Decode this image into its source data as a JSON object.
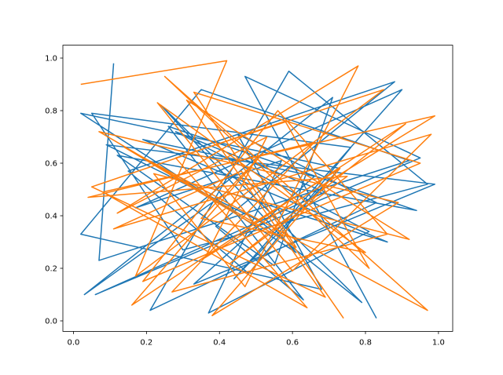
{
  "chart_data": {
    "type": "line",
    "xlim": [
      -0.029,
      1.039
    ],
    "ylim": [
      -0.04,
      1.049
    ],
    "xticks": [
      {
        "value": 0,
        "label": "0.0"
      },
      0.2,
      0.4,
      0.6,
      0.8,
      {
        "value": 1,
        "label": "1.0"
      }
    ],
    "yticks": [
      {
        "value": 0,
        "label": "0.0"
      },
      0.2,
      0.4,
      0.6,
      0.8,
      {
        "value": 1,
        "label": "1.0"
      }
    ],
    "series": [
      {
        "color": "#1f77b4",
        "x": [
          0.11,
          0.07,
          0.92,
          0.35,
          0.02,
          0.68,
          0.45,
          0.83,
          0.21,
          0.59,
          0.97,
          0.3,
          0.05,
          0.76,
          0.48,
          0.15,
          0.88,
          0.39,
          0.63,
          0.26,
          0.94,
          0.12,
          0.55,
          0.71,
          0.03,
          0.42,
          0.86,
          0.19,
          0.66,
          0.33,
          0.99,
          0.09,
          0.51,
          0.79,
          0.24,
          0.61,
          0.02,
          0.73,
          0.44,
          0.9,
          0.17,
          0.57,
          0.37,
          0.81,
          0.28,
          0.69,
          0.06,
          0.95,
          0.47,
          0.83
        ],
        "values": [
          0.98,
          0.23,
          0.61,
          0.88,
          0.33,
          0.12,
          0.71,
          0.45,
          0.04,
          0.95,
          0.52,
          0.27,
          0.79,
          0.66,
          0.18,
          0.57,
          0.91,
          0.36,
          0.08,
          0.74,
          0.42,
          0.63,
          0.21,
          0.85,
          0.1,
          0.49,
          0.3,
          0.69,
          0.55,
          0.14,
          0.52,
          0.67,
          0.38,
          0.07,
          0.82,
          0.26,
          0.79,
          0.58,
          0.16,
          0.88,
          0.43,
          0.61,
          0.03,
          0.34,
          0.72,
          0.49,
          0.1,
          0.62,
          0.93,
          0.01
        ]
      },
      {
        "color": "#ff7f0e",
        "x": [
          0.02,
          0.42,
          0.17,
          0.85,
          0.28,
          0.64,
          0.08,
          0.99,
          0.36,
          0.53,
          0.12,
          0.78,
          0.47,
          0.22,
          0.92,
          0.31,
          0.69,
          0.05,
          0.58,
          0.81,
          0.25,
          0.97,
          0.14,
          0.49,
          0.73,
          0.38,
          0.89,
          0.07,
          0.61,
          0.33,
          0.95,
          0.19,
          0.56,
          0.86,
          0.27,
          0.66,
          0.04,
          0.75,
          0.43,
          0.91,
          0.16,
          0.52,
          0.35,
          0.8,
          0.23,
          0.6,
          0.98,
          0.11,
          0.46,
          0.74
        ],
        "values": [
          0.9,
          0.99,
          0.17,
          0.88,
          0.62,
          0.05,
          0.49,
          0.78,
          0.24,
          0.7,
          0.41,
          0.97,
          0.13,
          0.56,
          0.31,
          0.84,
          0.09,
          0.51,
          0.76,
          0.2,
          0.93,
          0.04,
          0.66,
          0.37,
          0.58,
          0.02,
          0.45,
          0.72,
          0.28,
          0.87,
          0.6,
          0.15,
          0.8,
          0.33,
          0.11,
          0.68,
          0.47,
          0.55,
          0.22,
          0.75,
          0.06,
          0.64,
          0.39,
          0.26,
          0.83,
          0.19,
          0.71,
          0.35,
          0.57,
          0.01
        ]
      }
    ]
  }
}
